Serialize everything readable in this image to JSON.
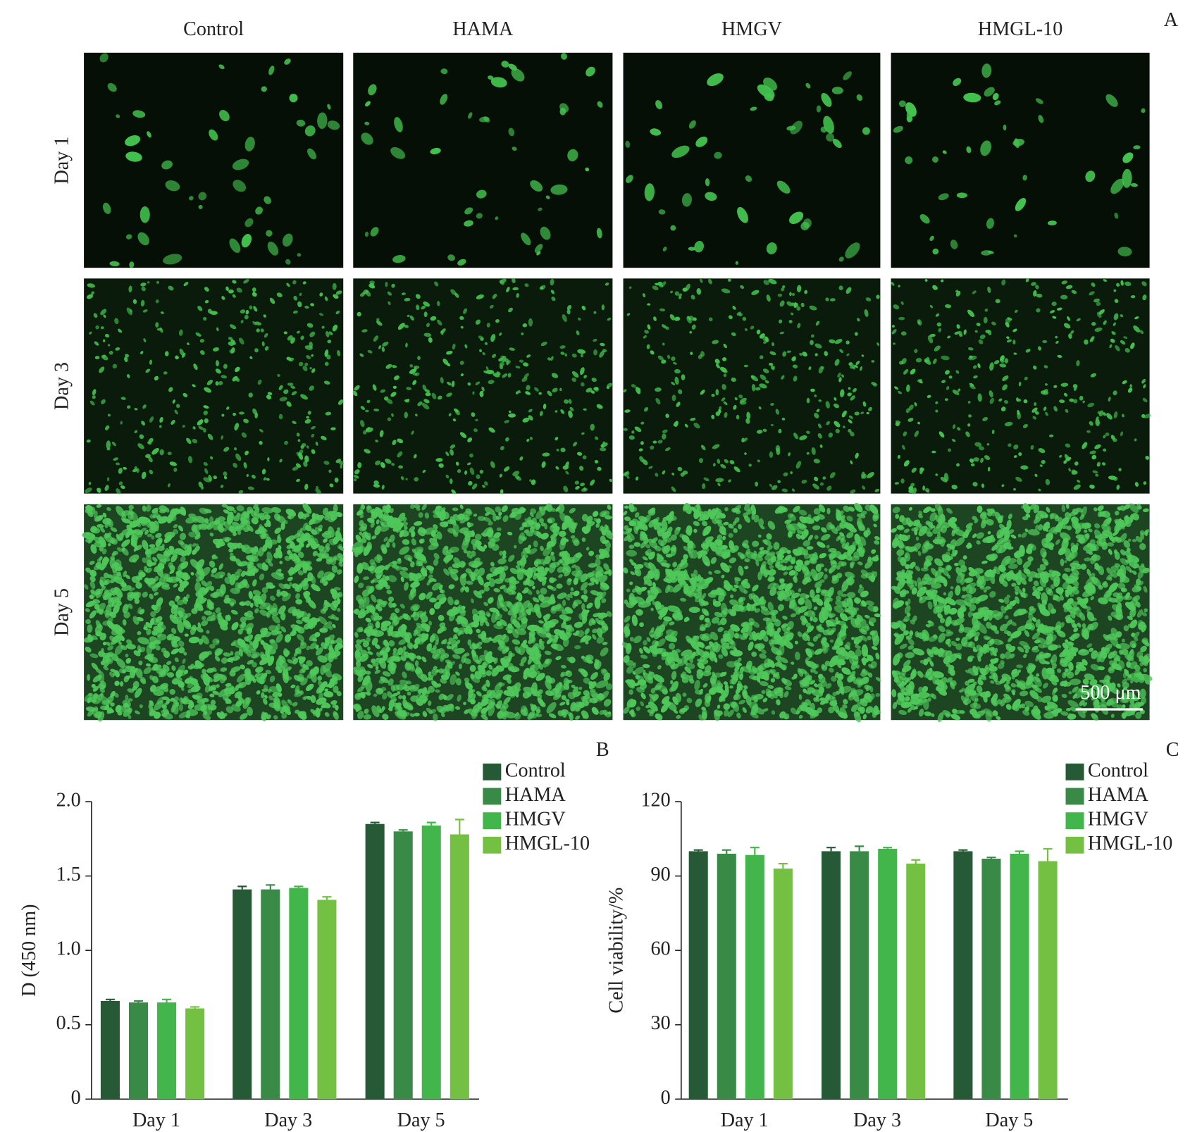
{
  "panel_a": {
    "label": "A",
    "columns": [
      "Control",
      "HAMA",
      "HMGV",
      "HMGL-10"
    ],
    "rows": [
      "Day 1",
      "Day 3",
      "Day 5"
    ],
    "scale_bar": "500 μm"
  },
  "chart_data": [
    {
      "type": "bar",
      "panel_label": "B",
      "y_label": "D (450 nm)",
      "categories": [
        "Day 1",
        "Day 3",
        "Day 5"
      ],
      "ylim": [
        0,
        2.0
      ],
      "yticks": [
        0,
        0.5,
        {
          "value": 1.0,
          "label": "1.0"
        },
        1.5,
        {
          "value": 2.0,
          "label": "2.0"
        }
      ],
      "legend": "top-right",
      "series": [
        {
          "name": "Control",
          "color": "#265a36",
          "values": [
            0.66,
            1.41,
            1.85
          ],
          "errors": [
            0.01,
            0.02,
            0.01
          ]
        },
        {
          "name": "HAMA",
          "color": "#3a8a47",
          "values": [
            0.65,
            1.41,
            1.8
          ],
          "errors": [
            0.01,
            0.03,
            0.01
          ]
        },
        {
          "name": "HMGV",
          "color": "#42b64a",
          "values": [
            0.65,
            1.42,
            1.84
          ],
          "errors": [
            0.02,
            0.01,
            0.02
          ]
        },
        {
          "name": "HMGL-10",
          "color": "#74c043",
          "values": [
            0.61,
            1.34,
            1.78
          ],
          "errors": [
            0.01,
            0.02,
            0.1
          ]
        }
      ]
    },
    {
      "type": "bar",
      "panel_label": "C",
      "y_label": "Cell viability/%",
      "categories": [
        "Day 1",
        "Day 3",
        "Day 5"
      ],
      "ylim": [
        0,
        120
      ],
      "yticks": [
        0,
        30,
        60,
        90,
        120
      ],
      "legend": "top-right",
      "series": [
        {
          "name": "Control",
          "color": "#265a36",
          "values": [
            100,
            100,
            100
          ],
          "errors": [
            0.5,
            1.5,
            0.5
          ]
        },
        {
          "name": "HAMA",
          "color": "#3a8a47",
          "values": [
            99,
            100,
            97
          ],
          "errors": [
            1.5,
            2,
            0.5
          ]
        },
        {
          "name": "HMGV",
          "color": "#42b64a",
          "values": [
            98.5,
            101,
            99
          ],
          "errors": [
            3,
            0.5,
            1
          ]
        },
        {
          "name": "HMGL-10",
          "color": "#74c043",
          "values": [
            93,
            95,
            96
          ],
          "errors": [
            2,
            1.5,
            5
          ]
        }
      ]
    }
  ]
}
